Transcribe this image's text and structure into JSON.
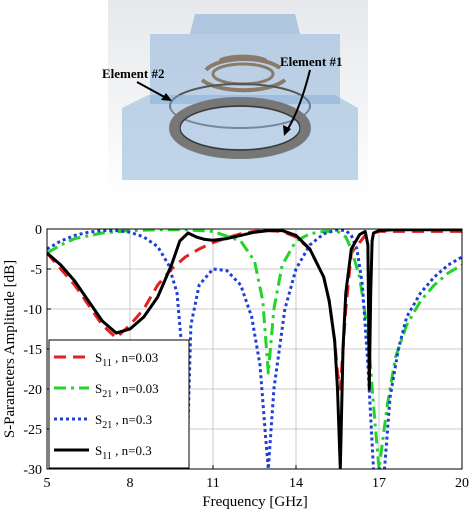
{
  "illustration": {
    "labels": [
      "Element #2",
      "Element #1"
    ]
  },
  "chart_data": {
    "type": "line",
    "title": "",
    "xlabel": "Frequency [GHz]",
    "ylabel": "S-Parameters Amplitude [dB]",
    "xlim": [
      5,
      20
    ],
    "ylim": [
      -30,
      0
    ],
    "xticks": [
      "5",
      "8",
      "11",
      "14",
      "17",
      "20"
    ],
    "yticks": [
      "0",
      "-5",
      "-10",
      "-15",
      "-20",
      "-25",
      "-30"
    ],
    "grid": true,
    "legend_position": "bottom-left",
    "series": [
      {
        "name": "S11 , n=0.03",
        "base": "S",
        "sub": "11",
        "suffix": " , n=0.03",
        "color": "#e3201b",
        "dash": "12,7",
        "width": 3,
        "x": [
          5,
          5.5,
          6,
          6.5,
          7,
          7.5,
          8,
          8.5,
          9,
          9.5,
          10,
          10.5,
          11,
          11.5,
          12,
          12.5,
          13,
          13.5,
          14,
          14.5,
          15,
          15.2,
          15.4,
          15.5,
          15.6,
          15.8,
          16,
          16.5,
          17,
          18,
          19,
          20
        ],
        "y": [
          -3,
          -5,
          -7,
          -9.5,
          -12,
          -13.6,
          -12,
          -10,
          -7,
          -5,
          -3.5,
          -2.5,
          -1.7,
          -1.1,
          -0.6,
          -0.3,
          -0.2,
          -0.3,
          -1,
          -2.5,
          -6,
          -9,
          -14,
          -18,
          -20,
          -10,
          -3,
          -0.8,
          -0.3,
          -0.3,
          -0.3,
          -0.3
        ]
      },
      {
        "name": "S21 , n=0.03",
        "base": "S",
        "sub": "21",
        "suffix": " , n=0.03",
        "color": "#22d42a",
        "dash": "12,5,3,5",
        "width": 3,
        "x": [
          5,
          5.5,
          6,
          7,
          8,
          9,
          10,
          11,
          12,
          12.5,
          12.8,
          13,
          13.2,
          13.5,
          14,
          14.5,
          15,
          15.5,
          15.8,
          16,
          16.3,
          16.6,
          16.8,
          17,
          17.3,
          17.6,
          18,
          18.5,
          19,
          19.5,
          20
        ],
        "y": [
          -3,
          -2,
          -1.2,
          -0.5,
          -0.2,
          -0.1,
          -0.1,
          -0.3,
          -1.5,
          -4,
          -9,
          -18,
          -10,
          -4.5,
          -1.5,
          -0.6,
          -0.3,
          -0.3,
          -1,
          -2.5,
          -6,
          -13,
          -22,
          -30,
          -22,
          -16,
          -12,
          -9,
          -7,
          -5.5,
          -4.5
        ]
      },
      {
        "name": "S21 , n=0.3",
        "base": "S",
        "sub": "21",
        "suffix": " , n=0.3",
        "color": "#1f3fd8",
        "dash": "3,3",
        "width": 3,
        "x": [
          5,
          5.5,
          6,
          6.5,
          7,
          7.5,
          8,
          8.5,
          9,
          9.4,
          9.7,
          9.9,
          10.05,
          10.2,
          10.5,
          11,
          11.5,
          12,
          12.4,
          12.7,
          12.9,
          13,
          13.2,
          13.6,
          14,
          14.5,
          15,
          15.5,
          15.8,
          16,
          16.2,
          16.4,
          16.6,
          16.8,
          17,
          17.2,
          17.4,
          17.7,
          18,
          18.5,
          19,
          19.5,
          20
        ],
        "y": [
          -2.5,
          -1.5,
          -0.8,
          -0.4,
          -0.2,
          -0.2,
          -0.4,
          -1,
          -2.2,
          -4.5,
          -8,
          -16,
          -30,
          -12,
          -7,
          -5,
          -5.2,
          -7,
          -11,
          -17,
          -26,
          -30,
          -20,
          -10,
          -5,
          -2,
          -0.6,
          -0.1,
          -0.2,
          -0.8,
          -2.5,
          -7,
          -17,
          -30,
          -30,
          -30,
          -21,
          -15,
          -11,
          -8,
          -6,
          -4.5,
          -3.5
        ]
      },
      {
        "name": "S11 , n=0.3",
        "base": "S",
        "sub": "11",
        "suffix": " , n=0.3",
        "color": "#000000",
        "dash": "",
        "width": 3,
        "x": [
          5,
          5.5,
          6,
          6.5,
          7,
          7.5,
          8,
          8.5,
          9,
          9.5,
          9.8,
          10.1,
          10.4,
          10.7,
          11,
          11.5,
          12,
          12.5,
          13,
          13.5,
          14,
          14.5,
          15,
          15.2,
          15.4,
          15.5,
          15.6,
          15.7,
          15.8,
          16,
          16.3,
          16.5,
          16.6,
          16.65,
          16.7,
          16.75,
          16.8,
          17,
          17.5,
          18,
          19,
          20
        ],
        "y": [
          -3,
          -4.5,
          -6.5,
          -9,
          -11.5,
          -13,
          -12.5,
          -11,
          -8.5,
          -4.5,
          -1.5,
          -0.5,
          -1,
          -1.3,
          -1.4,
          -1.2,
          -0.8,
          -0.4,
          -0.2,
          -0.2,
          -0.8,
          -2.5,
          -6,
          -9,
          -14,
          -20,
          -30,
          -15,
          -8,
          -2.5,
          -0.7,
          -0.3,
          -2,
          -20,
          -8,
          -1.5,
          -0.5,
          -0.2,
          -0.1,
          -0.1,
          -0.1,
          -0.1
        ]
      }
    ]
  }
}
